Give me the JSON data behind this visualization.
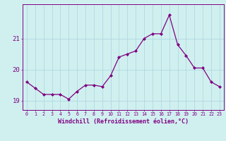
{
  "x": [
    0,
    1,
    2,
    3,
    4,
    5,
    6,
    7,
    8,
    9,
    10,
    11,
    12,
    13,
    14,
    15,
    16,
    17,
    18,
    19,
    20,
    21,
    22,
    23
  ],
  "y": [
    19.6,
    19.4,
    19.2,
    19.2,
    19.2,
    19.05,
    19.3,
    19.5,
    19.5,
    19.45,
    19.8,
    20.4,
    20.5,
    20.6,
    21.0,
    21.15,
    21.15,
    21.75,
    20.8,
    20.45,
    20.05,
    20.05,
    19.6,
    19.45
  ],
  "line_color": "#800080",
  "marker_color": "#800080",
  "bg_color": "#d0f0f0",
  "grid_color": "#b0d8e0",
  "axis_color": "#800080",
  "tick_color": "#800080",
  "xlabel": "Windchill (Refroidissement éolien,°C)",
  "xlabel_color": "#800080",
  "yticks": [
    19,
    20,
    21
  ],
  "xticks": [
    0,
    1,
    2,
    3,
    4,
    5,
    6,
    7,
    8,
    9,
    10,
    11,
    12,
    13,
    14,
    15,
    16,
    17,
    18,
    19,
    20,
    21,
    22,
    23
  ],
  "ylim": [
    18.7,
    22.1
  ],
  "xlim": [
    -0.5,
    23.5
  ]
}
